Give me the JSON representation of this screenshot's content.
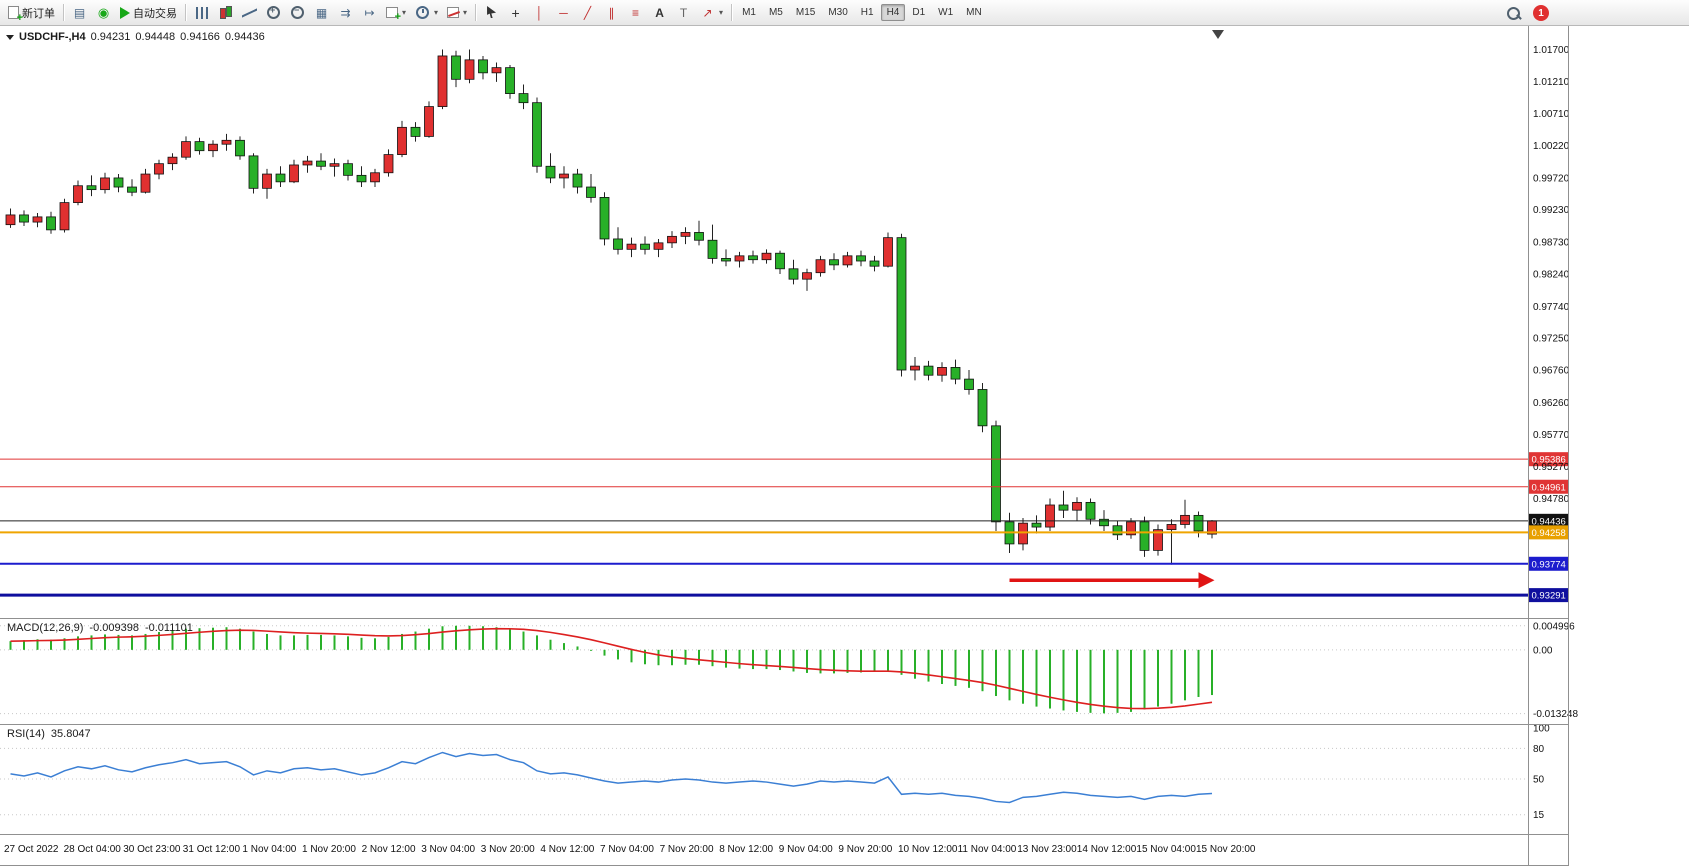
{
  "toolbar": {
    "buttons": [
      {
        "name": "new-order-button",
        "icon": "doc-plus",
        "label": "新订单"
      },
      {
        "sep": true
      },
      {
        "name": "charts-profile-button",
        "icon": "profile"
      },
      {
        "name": "market-watch-button",
        "icon": "headset"
      },
      {
        "name": "auto-trading-button",
        "icon": "play",
        "label": "自动交易"
      },
      {
        "sep": true
      },
      {
        "name": "bar-chart-button",
        "icon": "bars"
      },
      {
        "name": "candlestick-chart-button",
        "icon": "candles"
      },
      {
        "name": "line-chart-button",
        "icon": "linechart"
      },
      {
        "name": "zoom-in-button",
        "icon": "zoom-in"
      },
      {
        "name": "zoom-out-button",
        "icon": "zoom-out"
      },
      {
        "name": "tile-windows-button",
        "icon": "tiles"
      },
      {
        "name": "auto-scroll-button",
        "icon": "autoscroll"
      },
      {
        "name": "chart-shift-button",
        "icon": "shift"
      },
      {
        "name": "new-chart-button",
        "icon": "new-chart",
        "dropdown": true
      },
      {
        "name": "periods-button",
        "icon": "clock",
        "dropdown": true
      },
      {
        "name": "templates-button",
        "icon": "template",
        "dropdown": true
      },
      {
        "sep": true
      },
      {
        "name": "cursor-button",
        "icon": "cursor"
      },
      {
        "name": "crosshair-button",
        "icon": "crosshair"
      },
      {
        "name": "vertical-line-button",
        "icon": "vline"
      },
      {
        "name": "horizontal-line-button",
        "icon": "hline"
      },
      {
        "name": "trendline-button",
        "icon": "trend"
      },
      {
        "name": "equidistant-channel-button",
        "icon": "channel"
      },
      {
        "name": "fibonacci-button",
        "icon": "fibo"
      },
      {
        "name": "text-button",
        "icon": "text"
      },
      {
        "name": "text-label-button",
        "icon": "label"
      },
      {
        "name": "arrows-button",
        "icon": "arrow",
        "dropdown": true
      },
      {
        "sep": true
      }
    ],
    "icon_glyphs": {
      "profile": "▤",
      "headset": "◉",
      "tiles": "▦",
      "autoscroll": "⇉",
      "shift": "↦",
      "crosshair": "+",
      "vline": "│",
      "hline": "─",
      "trend": "╱",
      "channel": "∥",
      "fibo": "≡",
      "text": "A",
      "label": "T",
      "arrow": "↗"
    },
    "timeframes": [
      "M1",
      "M5",
      "M15",
      "M30",
      "H1",
      "H4",
      "D1",
      "W1",
      "MN"
    ],
    "active_timeframe": "H4",
    "notification_count": "1"
  },
  "chart": {
    "symbol_period": "USDCHF-,H4",
    "open": "0.94231",
    "high": "0.94448",
    "low": "0.94166",
    "close": "0.94436",
    "price_axis_labels": [
      "1.01700",
      "1.01210",
      "1.00710",
      "1.00220",
      "0.99720",
      "0.99230",
      "0.98730",
      "0.98240",
      "0.97740",
      "0.97250",
      "0.96760",
      "0.96260",
      "0.95770",
      "0.95270",
      "0.94780"
    ],
    "price_lines": [
      {
        "name": "resistance-line-upper",
        "price": 0.95386,
        "color": "#e03434",
        "width": 1,
        "label": "0.95386",
        "label_bg": "#e03434"
      },
      {
        "name": "resistance-line-lower",
        "price": 0.94961,
        "color": "#e03434",
        "width": 1,
        "label": "0.94961",
        "label_bg": "#e03434"
      },
      {
        "name": "current-price-line",
        "price": 0.94436,
        "color": "#222222",
        "width": 1,
        "label": "0.94436",
        "label_bg": "#111111"
      },
      {
        "name": "support-line-orange",
        "price": 0.94258,
        "color": "#efa500",
        "width": 2,
        "label": "0.94258",
        "label_bg": "#e8a000"
      },
      {
        "name": "support-line-blue-upper",
        "price": 0.93774,
        "color": "#1c1ccd",
        "width": 2,
        "label": "0.93774",
        "label_bg": "#1c1ccd"
      },
      {
        "name": "support-line-blue-lower",
        "price": 0.93291,
        "color": "#0f0f9e",
        "width": 3,
        "label": "0.93291",
        "label_bg": "#0f0f9e"
      }
    ],
    "arrow_object": {
      "price": 0.9352,
      "from_bar": 74,
      "to_bar": 88,
      "color": "#e01414"
    },
    "time_axis_labels": [
      "27 Oct 2022",
      "28 Oct 04:00",
      "30 Oct 23:00",
      "31 Oct 12:00",
      "1 Nov 04:00",
      "1 Nov 20:00",
      "2 Nov 12:00",
      "3 Nov 04:00",
      "3 Nov 20:00",
      "4 Nov 12:00",
      "7 Nov 04:00",
      "7 Nov 20:00",
      "8 Nov 12:00",
      "9 Nov 04:00",
      "9 Nov 20:00",
      "10 Nov 12:00",
      "11 Nov 04:00",
      "13 Nov 23:00",
      "14 Nov 12:00",
      "15 Nov 04:00",
      "15 Nov 20:00"
    ]
  },
  "macd": {
    "name": "MACD(12,26,9)",
    "value_main": "-0.009398",
    "value_signal": "-0.011101",
    "axis_labels": [
      "0.004996",
      "0.00",
      "-0.013248"
    ]
  },
  "rsi": {
    "name": "RSI(14)",
    "value": "35.8047",
    "axis_labels": [
      "100",
      "80",
      "50",
      "15"
    ],
    "levels": [
      80,
      50,
      15
    ]
  },
  "colors": {
    "up": "#e03030",
    "down": "#28b028",
    "wick": "#222222",
    "macd_hist": "#28b028",
    "macd_signal": "#dd2020",
    "rsi_line": "#3b7fd4",
    "grid": "#c8c8c8",
    "border": "#909090"
  },
  "chart_data": [
    {
      "type": "candlestick",
      "name": "USDCHF H4",
      "ylim": [
        0.93,
        1.02
      ],
      "candles": [
        [
          0.99,
          0.9925,
          0.9895,
          0.9915
        ],
        [
          0.9915,
          0.9922,
          0.9898,
          0.9904
        ],
        [
          0.9904,
          0.9918,
          0.9896,
          0.9912
        ],
        [
          0.9912,
          0.992,
          0.9886,
          0.9892
        ],
        [
          0.9892,
          0.994,
          0.9888,
          0.9934
        ],
        [
          0.9934,
          0.9968,
          0.993,
          0.996
        ],
        [
          0.996,
          0.9976,
          0.9944,
          0.9954
        ],
        [
          0.9954,
          0.998,
          0.9948,
          0.9972
        ],
        [
          0.9972,
          0.9978,
          0.995,
          0.9958
        ],
        [
          0.9958,
          0.997,
          0.9944,
          0.995
        ],
        [
          0.995,
          0.9986,
          0.9948,
          0.9978
        ],
        [
          0.9978,
          1.0,
          0.997,
          0.9994
        ],
        [
          0.9994,
          1.001,
          0.9984,
          1.0004
        ],
        [
          1.0004,
          1.0036,
          1.0,
          1.0028
        ],
        [
          1.0028,
          1.0034,
          1.0008,
          1.0014
        ],
        [
          1.0014,
          1.003,
          1.0004,
          1.0024
        ],
        [
          1.0024,
          1.004,
          1.0014,
          1.003
        ],
        [
          1.003,
          1.0036,
          1.0,
          1.0006
        ],
        [
          1.0006,
          1.001,
          0.9948,
          0.9956
        ],
        [
          0.9956,
          0.9986,
          0.994,
          0.9978
        ],
        [
          0.9978,
          0.999,
          0.9958,
          0.9966
        ],
        [
          0.9966,
          1.0,
          0.9964,
          0.9992
        ],
        [
          0.9992,
          1.0006,
          0.998,
          0.9998
        ],
        [
          0.9998,
          1.001,
          0.9984,
          0.999
        ],
        [
          0.999,
          1.0002,
          0.9974,
          0.9994
        ],
        [
          0.9994,
          1.0,
          0.9968,
          0.9976
        ],
        [
          0.9976,
          0.999,
          0.9958,
          0.9966
        ],
        [
          0.9966,
          0.9986,
          0.9958,
          0.998
        ],
        [
          0.998,
          1.0016,
          0.9974,
          1.0008
        ],
        [
          1.0008,
          1.006,
          1.0004,
          1.005
        ],
        [
          1.005,
          1.0058,
          1.0028,
          1.0036
        ],
        [
          1.0036,
          1.009,
          1.0034,
          1.0082
        ],
        [
          1.0082,
          1.017,
          1.0078,
          1.016
        ],
        [
          1.016,
          1.0168,
          1.0112,
          1.0124
        ],
        [
          1.0124,
          1.017,
          1.0118,
          1.0154
        ],
        [
          1.0154,
          1.016,
          1.0124,
          1.0134
        ],
        [
          1.0134,
          1.015,
          1.012,
          1.0142
        ],
        [
          1.0142,
          1.0146,
          1.0094,
          1.0102
        ],
        [
          1.0102,
          1.0116,
          1.0078,
          1.0088
        ],
        [
          1.0088,
          1.0096,
          0.998,
          0.999
        ],
        [
          0.999,
          1.001,
          0.9964,
          0.9972
        ],
        [
          0.9972,
          0.999,
          0.9956,
          0.9978
        ],
        [
          0.9978,
          0.9986,
          0.9948,
          0.9958
        ],
        [
          0.9958,
          0.9978,
          0.9934,
          0.9942
        ],
        [
          0.9942,
          0.995,
          0.9868,
          0.9878
        ],
        [
          0.9878,
          0.9896,
          0.9854,
          0.9862
        ],
        [
          0.9862,
          0.988,
          0.985,
          0.987
        ],
        [
          0.987,
          0.9882,
          0.9854,
          0.9862
        ],
        [
          0.9862,
          0.9878,
          0.985,
          0.9872
        ],
        [
          0.9872,
          0.989,
          0.9864,
          0.9882
        ],
        [
          0.9882,
          0.9896,
          0.987,
          0.9888
        ],
        [
          0.9888,
          0.9906,
          0.9868,
          0.9876
        ],
        [
          0.9876,
          0.99,
          0.984,
          0.9848
        ],
        [
          0.9848,
          0.9862,
          0.9836,
          0.9844
        ],
        [
          0.9844,
          0.9858,
          0.9834,
          0.9852
        ],
        [
          0.9852,
          0.986,
          0.984,
          0.9846
        ],
        [
          0.9846,
          0.9862,
          0.984,
          0.9856
        ],
        [
          0.9856,
          0.986,
          0.9824,
          0.9832
        ],
        [
          0.9832,
          0.9846,
          0.9808,
          0.9816
        ],
        [
          0.9816,
          0.9832,
          0.9798,
          0.9826
        ],
        [
          0.9826,
          0.9852,
          0.982,
          0.9846
        ],
        [
          0.9846,
          0.9856,
          0.983,
          0.9838
        ],
        [
          0.9838,
          0.9858,
          0.9834,
          0.9852
        ],
        [
          0.9852,
          0.986,
          0.9836,
          0.9844
        ],
        [
          0.9844,
          0.9852,
          0.9828,
          0.9836
        ],
        [
          0.9836,
          0.9888,
          0.9834,
          0.988
        ],
        [
          0.988,
          0.9886,
          0.9666,
          0.9676
        ],
        [
          0.9676,
          0.9696,
          0.966,
          0.9682
        ],
        [
          0.9682,
          0.969,
          0.966,
          0.9668
        ],
        [
          0.9668,
          0.9688,
          0.9658,
          0.968
        ],
        [
          0.968,
          0.9692,
          0.9654,
          0.9662
        ],
        [
          0.9662,
          0.9676,
          0.9638,
          0.9646
        ],
        [
          0.9646,
          0.9656,
          0.958,
          0.959
        ],
        [
          0.959,
          0.9598,
          0.9428,
          0.9442
        ],
        [
          0.9442,
          0.9456,
          0.9394,
          0.9408
        ],
        [
          0.9408,
          0.9448,
          0.9398,
          0.944
        ],
        [
          0.944,
          0.9452,
          0.9424,
          0.9434
        ],
        [
          0.9434,
          0.9478,
          0.9428,
          0.9468
        ],
        [
          0.9468,
          0.949,
          0.9448,
          0.946
        ],
        [
          0.946,
          0.948,
          0.9444,
          0.9472
        ],
        [
          0.9472,
          0.9478,
          0.9438,
          0.9446
        ],
        [
          0.9446,
          0.946,
          0.9428,
          0.9436
        ],
        [
          0.9436,
          0.9444,
          0.9414,
          0.9422
        ],
        [
          0.9422,
          0.9448,
          0.9416,
          0.9442
        ],
        [
          0.9442,
          0.945,
          0.9388,
          0.9398
        ],
        [
          0.9398,
          0.9438,
          0.939,
          0.943
        ],
        [
          0.943,
          0.9446,
          0.9376,
          0.9438
        ],
        [
          0.9438,
          0.9476,
          0.9432,
          0.9452
        ],
        [
          0.9452,
          0.9458,
          0.9418,
          0.9428
        ],
        [
          0.94231,
          0.94448,
          0.94166,
          0.94436
        ]
      ]
    },
    {
      "type": "bar",
      "name": "MACD(12,26,9) histogram",
      "note": "signal line = 9-period EMA of histogram values",
      "ylim": [
        -0.015,
        0.0062
      ],
      "values": [
        0.0018,
        0.002,
        0.0022,
        0.0021,
        0.0024,
        0.0028,
        0.003,
        0.0032,
        0.0031,
        0.003,
        0.0033,
        0.0037,
        0.004,
        0.0044,
        0.0045,
        0.0046,
        0.0047,
        0.0044,
        0.0038,
        0.0033,
        0.003,
        0.003,
        0.0031,
        0.0031,
        0.003,
        0.0028,
        0.0025,
        0.0024,
        0.0027,
        0.0033,
        0.0038,
        0.0044,
        0.0049,
        0.005,
        0.005,
        0.0049,
        0.0047,
        0.0043,
        0.0038,
        0.003,
        0.0021,
        0.0014,
        0.0007,
        -0.0002,
        -0.0012,
        -0.002,
        -0.0026,
        -0.003,
        -0.0032,
        -0.0032,
        -0.0031,
        -0.0031,
        -0.0034,
        -0.0037,
        -0.0039,
        -0.004,
        -0.004,
        -0.0042,
        -0.0045,
        -0.0048,
        -0.0049,
        -0.0049,
        -0.0048,
        -0.0047,
        -0.0045,
        -0.0044,
        -0.0052,
        -0.006,
        -0.0066,
        -0.0071,
        -0.0075,
        -0.0079,
        -0.0086,
        -0.0096,
        -0.0105,
        -0.0112,
        -0.0118,
        -0.0122,
        -0.0126,
        -0.0129,
        -0.0131,
        -0.0132,
        -0.0131,
        -0.0129,
        -0.0124,
        -0.0118,
        -0.0112,
        -0.0105,
        -0.0098,
        -0.009398
      ]
    },
    {
      "type": "line",
      "name": "RSI(14)",
      "ylim": [
        0,
        100
      ],
      "values": [
        55,
        53,
        56,
        52,
        58,
        62,
        60,
        63,
        59,
        57,
        61,
        64,
        66,
        69,
        65,
        66,
        67,
        62,
        54,
        58,
        56,
        60,
        61,
        59,
        60,
        57,
        54,
        56,
        61,
        67,
        65,
        71,
        76,
        72,
        75,
        73,
        74,
        69,
        66,
        58,
        55,
        56,
        54,
        51,
        48,
        46,
        47,
        48,
        47,
        49,
        50,
        49,
        47,
        46,
        47,
        48,
        47,
        45,
        43,
        45,
        48,
        47,
        48,
        47,
        46,
        52,
        35,
        36,
        35,
        36,
        34,
        33,
        31,
        28,
        27,
        32,
        33,
        35,
        37,
        36,
        34,
        33,
        32,
        33,
        30,
        33,
        34,
        33,
        35,
        35.8
      ]
    }
  ]
}
